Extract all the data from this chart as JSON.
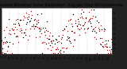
{
  "title": "Milwaukee Weather Solar Radiation  Avg per Day W/m2/minute",
  "title_fontsize": 3.8,
  "title_color": "#000000",
  "background_color": "#222222",
  "plot_bg_color": "#ffffff",
  "grid_color": "#aaaaaa",
  "series1_color": "#000000",
  "series2_color": "#dd0000",
  "marker_size": 1.0,
  "n_points": 130,
  "ylim": [
    0,
    9
  ],
  "ytick_fontsize": 2.8,
  "xtick_fontsize": 2.2,
  "vertical_grid_interval": 10,
  "seed": 12
}
